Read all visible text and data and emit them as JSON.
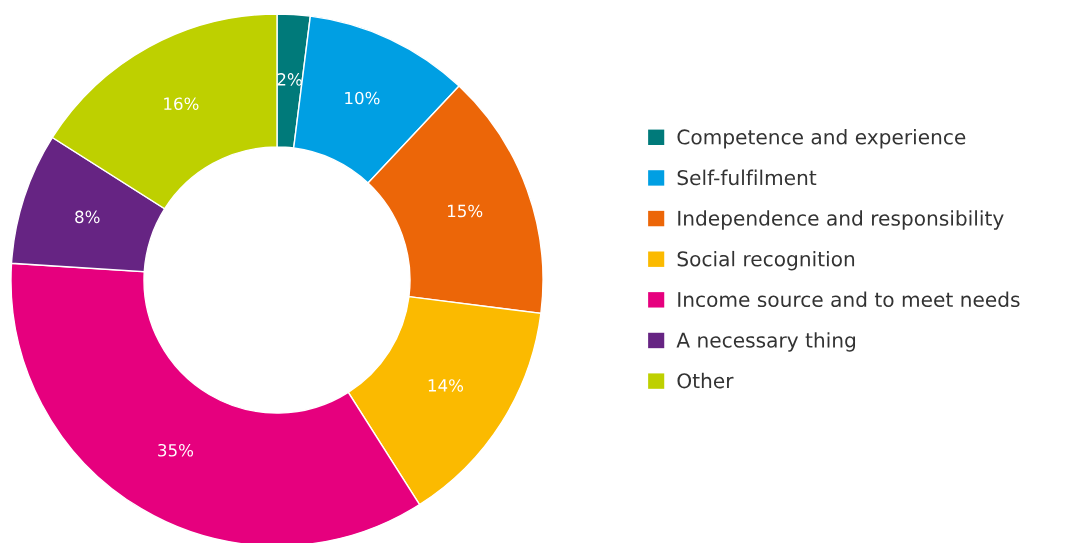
{
  "chart_data": {
    "type": "donut",
    "categories": [
      "Competence and experience",
      "Self-fulfilment",
      "Independence and responsibility",
      "Social recognition",
      "Income source and to meet needs",
      "A necessary thing",
      "Other"
    ],
    "values": [
      2,
      10,
      15,
      14,
      35,
      8,
      16
    ],
    "colors": [
      "#007a7a",
      "#009fe3",
      "#ec6608",
      "#fbba00",
      "#e6007e",
      "#662483",
      "#bed000"
    ],
    "value_labels": [
      "2%",
      "10%",
      "15%",
      "14%",
      "35%",
      "8%",
      "16%"
    ],
    "legend": "right"
  }
}
